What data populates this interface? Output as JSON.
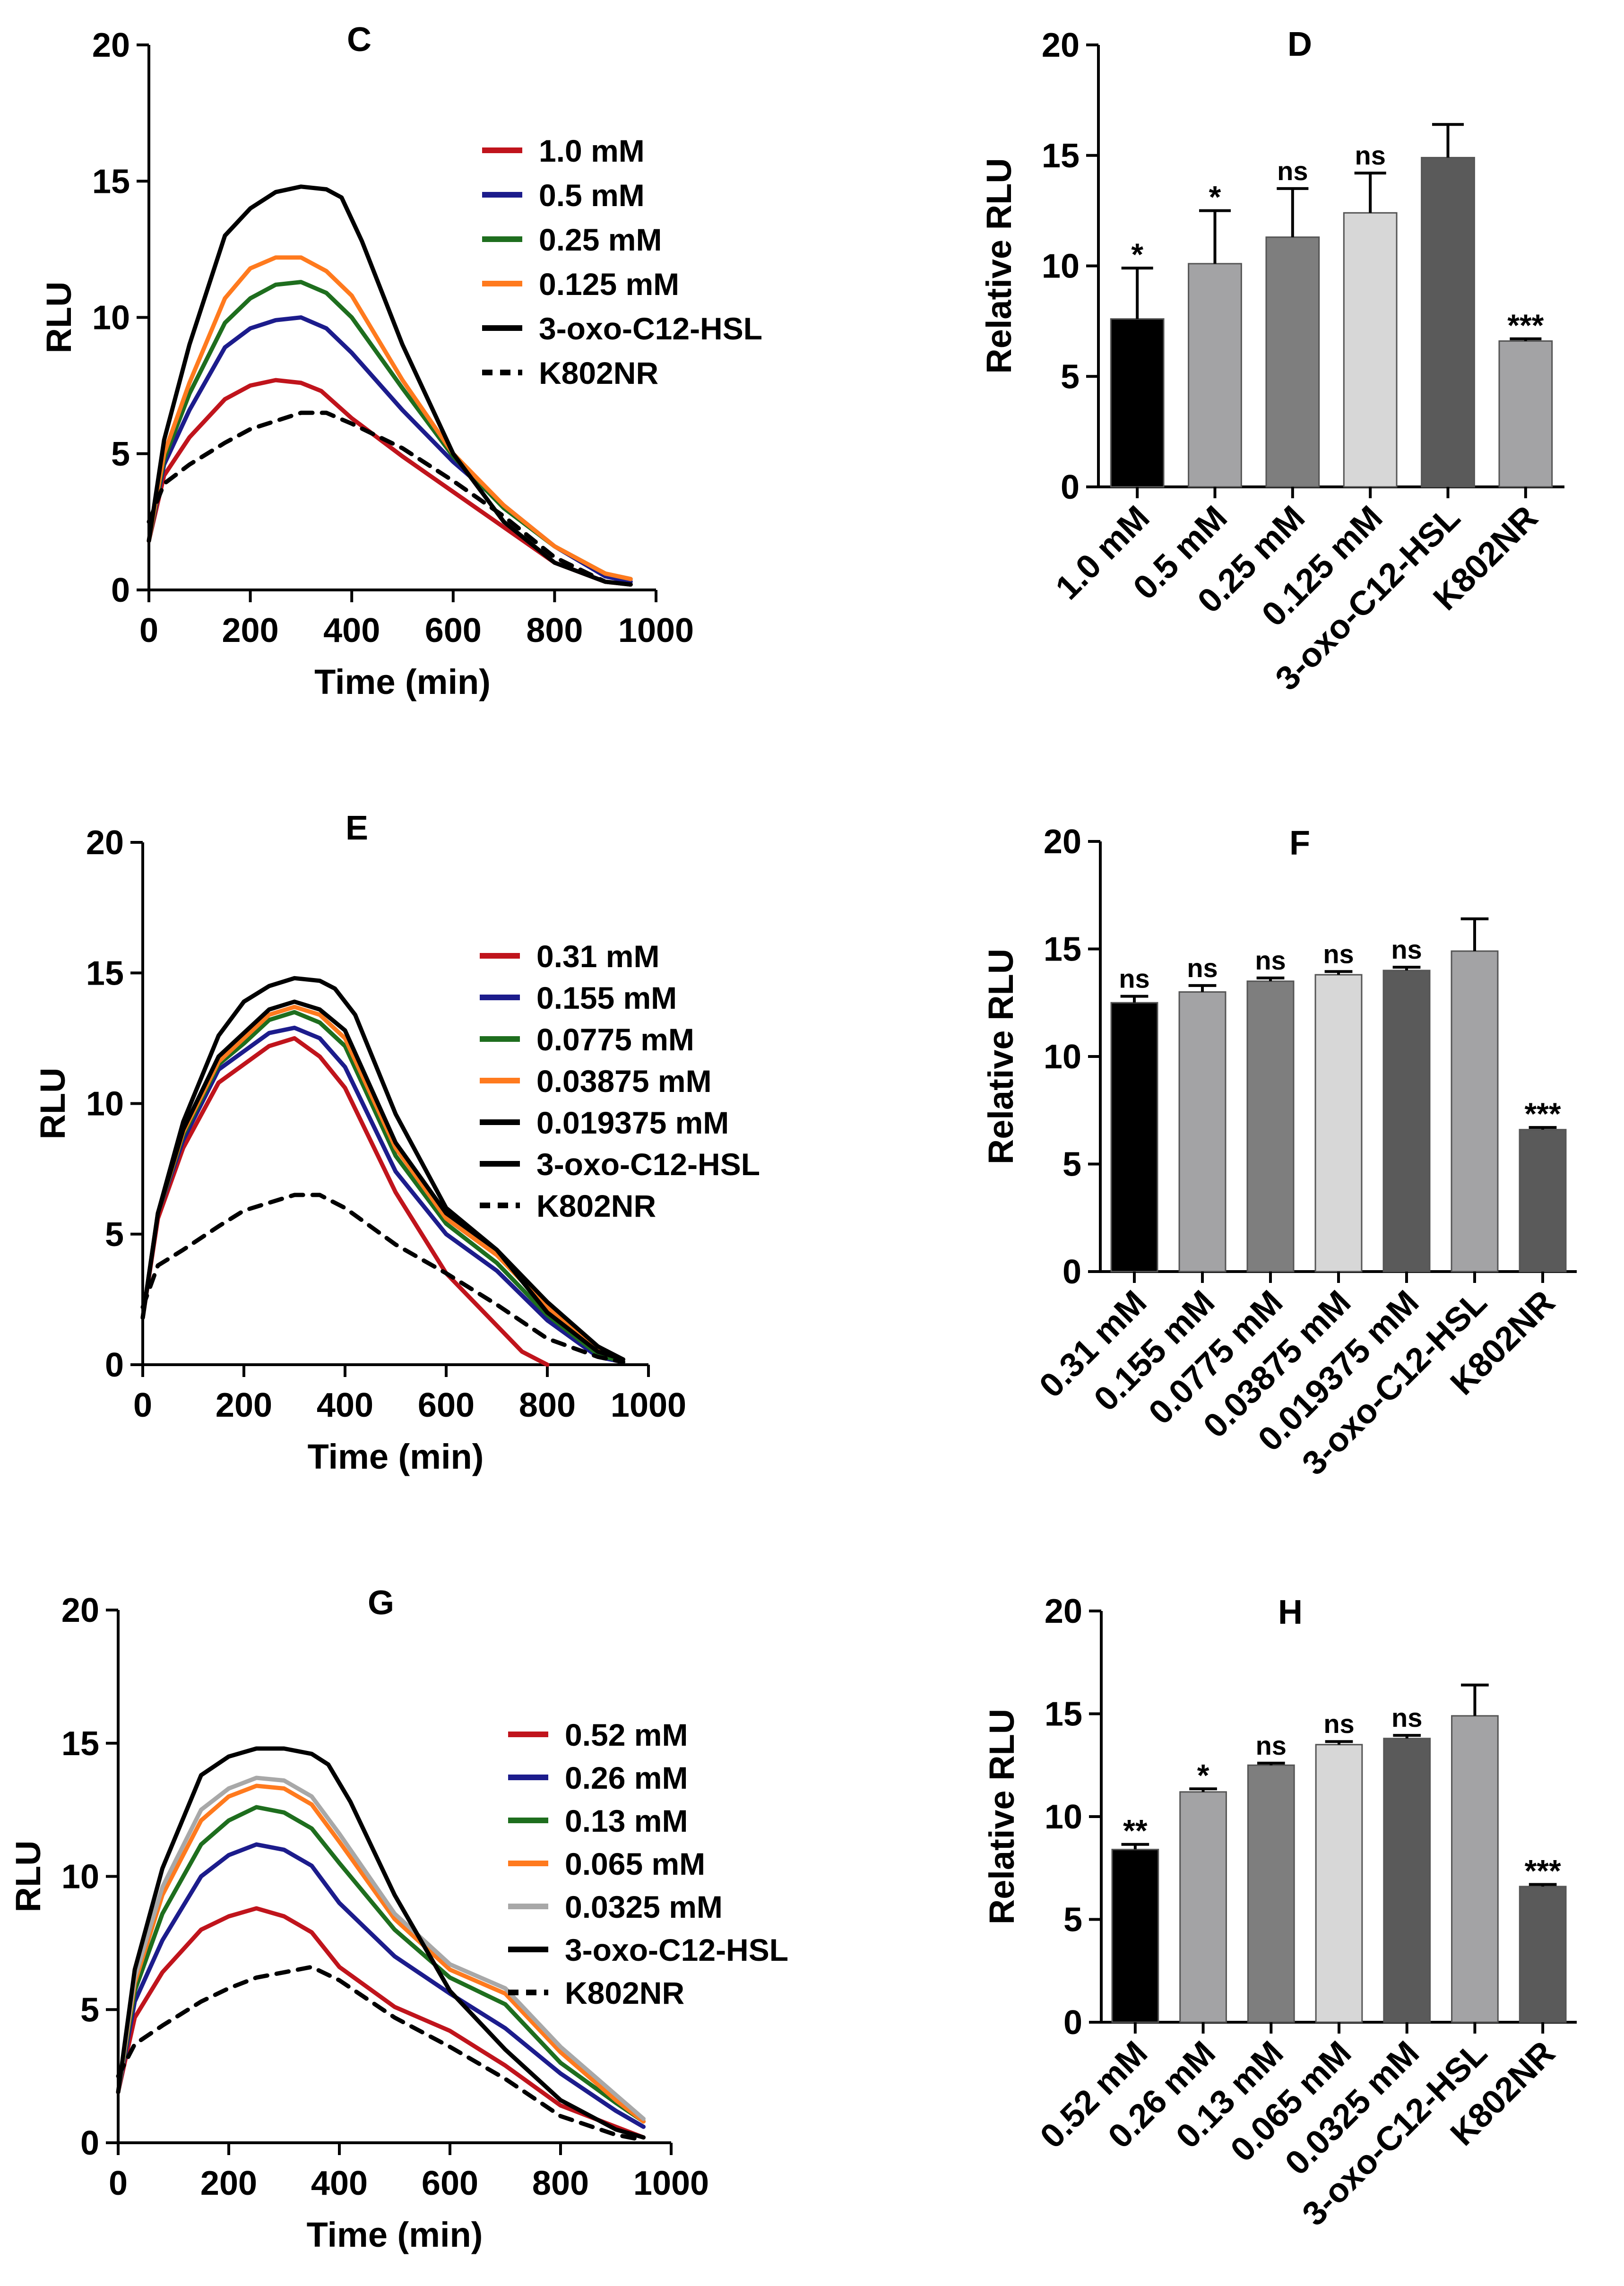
{
  "chart_data": [
    {
      "panel": "C",
      "type": "line",
      "title": "C",
      "xlabel": "Time (min)",
      "ylabel": "RLU",
      "xlim": [
        0,
        1000
      ],
      "ylim": [
        0,
        20
      ],
      "xticks": [
        "0",
        "200",
        "400",
        "600",
        "800",
        "1000"
      ],
      "yticks": [
        "0",
        "5",
        "10",
        "15",
        "20"
      ],
      "legend_position": "top-right",
      "series": [
        {
          "name": "1.0 mM",
          "color": "#c0141c",
          "dashed": false,
          "x": [
            0,
            30,
            80,
            150,
            200,
            250,
            300,
            340,
            400,
            500,
            600,
            700,
            800,
            900,
            950
          ],
          "y": [
            1.8,
            4.2,
            5.6,
            7.0,
            7.5,
            7.7,
            7.6,
            7.3,
            6.3,
            4.9,
            3.6,
            2.3,
            1.0,
            0.3,
            0.2
          ]
        },
        {
          "name": "0.5 mM",
          "color": "#1c1c8c",
          "dashed": false,
          "x": [
            0,
            30,
            80,
            150,
            200,
            250,
            300,
            350,
            400,
            500,
            600,
            700,
            800,
            900,
            950
          ],
          "y": [
            1.8,
            4.6,
            6.6,
            8.9,
            9.6,
            9.9,
            10.0,
            9.6,
            8.7,
            6.6,
            4.7,
            3.1,
            1.6,
            0.5,
            0.3
          ]
        },
        {
          "name": "0.25 mM",
          "color": "#1e6e1e",
          "dashed": false,
          "x": [
            0,
            30,
            80,
            150,
            200,
            250,
            300,
            350,
            400,
            500,
            600,
            700,
            800,
            900,
            950
          ],
          "y": [
            1.8,
            4.8,
            7.2,
            9.8,
            10.7,
            11.2,
            11.3,
            10.9,
            10.0,
            7.4,
            4.9,
            3.0,
            1.6,
            0.6,
            0.4
          ]
        },
        {
          "name": "0.125 mM",
          "color": "#ff7a1e",
          "dashed": false,
          "x": [
            0,
            30,
            80,
            150,
            200,
            250,
            300,
            350,
            400,
            500,
            600,
            700,
            800,
            900,
            950
          ],
          "y": [
            1.8,
            5.0,
            7.6,
            10.7,
            11.8,
            12.2,
            12.2,
            11.7,
            10.8,
            7.7,
            5.0,
            3.1,
            1.6,
            0.6,
            0.4
          ]
        },
        {
          "name": "3-oxo-C12-HSL",
          "color": "#000000",
          "dashed": false,
          "x": [
            0,
            30,
            80,
            150,
            200,
            250,
            300,
            350,
            380,
            420,
            500,
            600,
            700,
            800,
            900,
            950
          ],
          "y": [
            1.8,
            5.5,
            9.0,
            13.0,
            14.0,
            14.6,
            14.8,
            14.7,
            14.4,
            12.8,
            9.0,
            5.0,
            2.5,
            1.0,
            0.3,
            0.2
          ]
        },
        {
          "name": "K802NR",
          "color": "#000000",
          "dashed": true,
          "x": [
            0,
            30,
            80,
            150,
            200,
            250,
            300,
            350,
            400,
            500,
            600,
            700,
            800,
            900,
            950
          ],
          "y": [
            2.5,
            3.9,
            4.6,
            5.4,
            5.9,
            6.2,
            6.5,
            6.5,
            6.1,
            5.2,
            4.0,
            2.7,
            1.2,
            0.3,
            0.2
          ]
        }
      ]
    },
    {
      "panel": "D",
      "type": "bar",
      "title": "D",
      "xlabel": "",
      "ylabel": "Relative RLU",
      "ylim": [
        0,
        20
      ],
      "yticks": [
        "0",
        "5",
        "10",
        "15",
        "20"
      ],
      "categories": [
        "1.0 mM",
        "0.5 mM",
        "0.25 mM",
        "0.125 mM",
        "3-oxo-C12-HSL",
        "K802NR"
      ],
      "values": [
        7.6,
        10.1,
        11.3,
        12.4,
        14.9,
        6.6
      ],
      "errors": [
        2.3,
        2.4,
        2.2,
        1.8,
        1.5,
        0.1
      ],
      "significance": [
        "*",
        "*",
        "ns",
        "ns",
        "",
        "***"
      ],
      "colors": [
        "#000000",
        "#a3a3a5",
        "#7e7e7e",
        "#d7d7d7",
        "#5a5a5a",
        "#a3a3a5"
      ]
    },
    {
      "panel": "E",
      "type": "line",
      "title": "E",
      "xlabel": "Time (min)",
      "ylabel": "RLU",
      "xlim": [
        0,
        1000
      ],
      "ylim": [
        0,
        20
      ],
      "xticks": [
        "0",
        "200",
        "400",
        "600",
        "800",
        "1000"
      ],
      "yticks": [
        "0",
        "5",
        "10",
        "15",
        "20"
      ],
      "legend_position": "top-right",
      "series": [
        {
          "name": "0.31 mM",
          "color": "#c0141c",
          "dashed": false,
          "x": [
            0,
            30,
            80,
            150,
            200,
            250,
            300,
            350,
            400,
            500,
            600,
            650,
            700,
            750,
            800
          ],
          "y": [
            1.8,
            5.6,
            8.3,
            10.8,
            11.5,
            12.2,
            12.5,
            11.8,
            10.6,
            6.6,
            3.5,
            2.5,
            1.5,
            0.5,
            0.0
          ]
        },
        {
          "name": "0.155 mM",
          "color": "#1c1c8c",
          "dashed": false,
          "x": [
            0,
            30,
            80,
            150,
            200,
            250,
            300,
            350,
            400,
            500,
            600,
            700,
            800,
            900,
            950
          ],
          "y": [
            1.8,
            5.8,
            8.6,
            11.3,
            12.0,
            12.7,
            12.9,
            12.5,
            11.4,
            7.4,
            5.0,
            3.6,
            1.7,
            0.3,
            0.1
          ]
        },
        {
          "name": "0.0775 mM",
          "color": "#1e6e1e",
          "dashed": false,
          "x": [
            0,
            30,
            80,
            150,
            200,
            250,
            300,
            350,
            400,
            500,
            600,
            700,
            800,
            900,
            950
          ],
          "y": [
            1.8,
            5.8,
            8.8,
            11.5,
            12.3,
            13.2,
            13.5,
            13.1,
            12.2,
            8.0,
            5.4,
            3.9,
            1.9,
            0.4,
            0.1
          ]
        },
        {
          "name": "0.03875 mM",
          "color": "#ff7a1e",
          "dashed": false,
          "x": [
            0,
            30,
            80,
            150,
            200,
            250,
            300,
            350,
            400,
            500,
            600,
            700,
            800,
            900,
            950
          ],
          "y": [
            1.8,
            5.8,
            8.9,
            11.6,
            12.5,
            13.4,
            13.7,
            13.4,
            12.5,
            8.3,
            5.6,
            4.2,
            2.2,
            0.6,
            0.2
          ]
        },
        {
          "name": "0.019375 mM",
          "color": "#000000",
          "dashed": false,
          "x": [
            0,
            30,
            80,
            150,
            200,
            250,
            300,
            350,
            400,
            500,
            600,
            700,
            800,
            900,
            950
          ],
          "y": [
            1.8,
            5.8,
            9.0,
            11.8,
            12.7,
            13.6,
            13.9,
            13.6,
            12.8,
            8.5,
            5.8,
            4.4,
            2.4,
            0.7,
            0.2
          ]
        },
        {
          "name": "3-oxo-C12-HSL",
          "color": "#000000",
          "dashed": false,
          "x": [
            0,
            30,
            80,
            150,
            200,
            250,
            300,
            350,
            380,
            420,
            500,
            600,
            700,
            800,
            900,
            950
          ],
          "y": [
            1.8,
            5.8,
            9.3,
            12.6,
            13.9,
            14.5,
            14.8,
            14.7,
            14.4,
            13.4,
            9.6,
            6.0,
            4.4,
            2.0,
            0.5,
            0.2
          ]
        },
        {
          "name": "K802NR",
          "color": "#000000",
          "dashed": true,
          "x": [
            0,
            30,
            80,
            150,
            200,
            250,
            300,
            350,
            400,
            500,
            600,
            700,
            800,
            900,
            950
          ],
          "y": [
            2.2,
            3.8,
            4.4,
            5.3,
            5.9,
            6.2,
            6.5,
            6.5,
            6.0,
            4.6,
            3.5,
            2.3,
            1.0,
            0.3,
            0.1
          ]
        }
      ]
    },
    {
      "panel": "F",
      "type": "bar",
      "title": "F",
      "xlabel": "",
      "ylabel": "Relative RLU",
      "ylim": [
        0,
        20
      ],
      "yticks": [
        "0",
        "5",
        "10",
        "15",
        "20"
      ],
      "categories": [
        "0.31 mM",
        "0.155 mM",
        "0.0775 mM",
        "0.03875 mM",
        "0.019375 mM",
        "3-oxo-C12-HSL",
        "K802NR"
      ],
      "values": [
        12.5,
        13.0,
        13.5,
        13.8,
        14.0,
        14.9,
        6.6
      ],
      "errors": [
        0.3,
        0.3,
        0.15,
        0.15,
        0.15,
        1.5,
        0.1
      ],
      "significance": [
        "ns",
        "ns",
        "ns",
        "ns",
        "ns",
        "",
        "***"
      ],
      "colors": [
        "#000000",
        "#a3a3a5",
        "#7e7e7e",
        "#d7d7d7",
        "#5a5a5a",
        "#a3a3a5",
        "#5a5a5a"
      ]
    },
    {
      "panel": "G",
      "type": "line",
      "title": "G",
      "xlabel": "Time (min)",
      "ylabel": "RLU",
      "xlim": [
        0,
        1000
      ],
      "ylim": [
        0,
        20
      ],
      "xticks": [
        "0",
        "200",
        "400",
        "600",
        "800",
        "1000"
      ],
      "yticks": [
        "0",
        "5",
        "10",
        "15",
        "20"
      ],
      "legend_position": "top-right",
      "series": [
        {
          "name": "0.52 mM",
          "color": "#c0141c",
          "dashed": false,
          "x": [
            0,
            30,
            80,
            150,
            200,
            250,
            300,
            350,
            400,
            500,
            600,
            700,
            800,
            900,
            950
          ],
          "y": [
            1.9,
            4.7,
            6.4,
            8.0,
            8.5,
            8.8,
            8.5,
            7.9,
            6.6,
            5.1,
            4.2,
            2.9,
            1.4,
            0.6,
            0.2
          ]
        },
        {
          "name": "0.26 mM",
          "color": "#1c1c8c",
          "dashed": false,
          "x": [
            0,
            30,
            80,
            150,
            200,
            250,
            300,
            350,
            400,
            500,
            600,
            700,
            800,
            900,
            950
          ],
          "y": [
            1.9,
            5.3,
            7.6,
            10.0,
            10.8,
            11.2,
            11.0,
            10.4,
            9.0,
            7.0,
            5.6,
            4.3,
            2.6,
            1.2,
            0.6
          ]
        },
        {
          "name": "0.13 mM",
          "color": "#1e6e1e",
          "dashed": false,
          "x": [
            0,
            30,
            80,
            150,
            200,
            250,
            300,
            350,
            400,
            500,
            600,
            700,
            800,
            900,
            950
          ],
          "y": [
            1.9,
            5.7,
            8.6,
            11.2,
            12.1,
            12.6,
            12.4,
            11.8,
            10.5,
            8.0,
            6.2,
            5.2,
            3.0,
            1.5,
            0.8
          ]
        },
        {
          "name": "0.065 mM",
          "color": "#ff7a1e",
          "dashed": false,
          "x": [
            0,
            30,
            80,
            150,
            200,
            250,
            300,
            350,
            400,
            500,
            600,
            700,
            800,
            900,
            950
          ],
          "y": [
            1.9,
            6.0,
            9.3,
            12.1,
            13.0,
            13.4,
            13.3,
            12.7,
            11.3,
            8.4,
            6.5,
            5.6,
            3.4,
            1.6,
            0.8
          ]
        },
        {
          "name": "0.0325 mM",
          "color": "#a8a8a8",
          "dashed": false,
          "x": [
            0,
            30,
            80,
            150,
            200,
            250,
            300,
            350,
            400,
            500,
            600,
            700,
            800,
            900,
            950
          ],
          "y": [
            1.9,
            6.2,
            9.6,
            12.5,
            13.3,
            13.7,
            13.6,
            13.0,
            11.6,
            8.6,
            6.7,
            5.8,
            3.6,
            1.8,
            0.9
          ]
        },
        {
          "name": "3-oxo-C12-HSL",
          "color": "#000000",
          "dashed": false,
          "x": [
            0,
            30,
            80,
            150,
            200,
            250,
            300,
            350,
            380,
            420,
            500,
            600,
            700,
            800,
            900,
            950
          ],
          "y": [
            1.9,
            6.5,
            10.3,
            13.8,
            14.5,
            14.8,
            14.8,
            14.6,
            14.2,
            12.8,
            9.3,
            5.7,
            3.5,
            1.6,
            0.5,
            0.2
          ]
        },
        {
          "name": "K802NR",
          "color": "#000000",
          "dashed": true,
          "x": [
            0,
            30,
            80,
            150,
            200,
            250,
            300,
            350,
            400,
            500,
            600,
            700,
            800,
            900,
            950
          ],
          "y": [
            2.5,
            3.7,
            4.4,
            5.3,
            5.8,
            6.2,
            6.4,
            6.6,
            6.1,
            4.7,
            3.6,
            2.4,
            1.0,
            0.3,
            0.1
          ]
        }
      ]
    },
    {
      "panel": "H",
      "type": "bar",
      "title": "H",
      "xlabel": "",
      "ylabel": "Relative RLU",
      "ylim": [
        0,
        20
      ],
      "yticks": [
        "0",
        "5",
        "10",
        "15",
        "20"
      ],
      "categories": [
        "0.52 mM",
        "0.26 mM",
        "0.13 mM",
        "0.065 mM",
        "0.0325 mM",
        "3-oxo-C12-HSL",
        "K802NR"
      ],
      "values": [
        8.4,
        11.2,
        12.5,
        13.5,
        13.8,
        14.9,
        6.6
      ],
      "errors": [
        0.25,
        0.15,
        0.1,
        0.15,
        0.15,
        1.5,
        0.1
      ],
      "significance": [
        "**",
        "*",
        "ns",
        "ns",
        "ns",
        "",
        "***"
      ],
      "colors": [
        "#000000",
        "#a3a3a5",
        "#7e7e7e",
        "#d7d7d7",
        "#5a5a5a",
        "#a3a3a5",
        "#5a5a5a"
      ]
    }
  ]
}
